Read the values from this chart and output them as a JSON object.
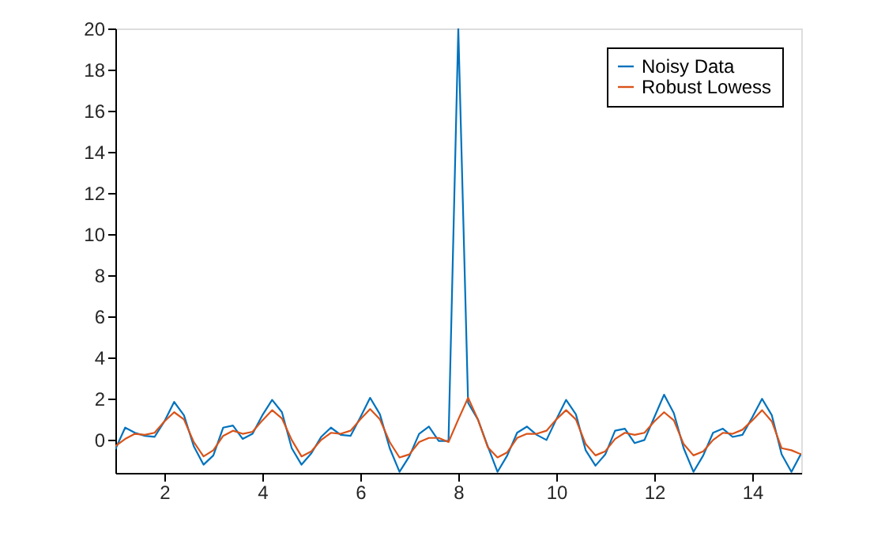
{
  "chart_data": {
    "type": "line",
    "x": [
      1.0,
      1.2,
      1.4,
      1.6,
      1.8,
      2.0,
      2.2,
      2.4,
      2.6,
      2.8,
      3.0,
      3.2,
      3.4,
      3.6,
      3.8,
      4.0,
      4.2,
      4.4,
      4.6,
      4.8,
      5.0,
      5.2,
      5.4,
      5.6,
      5.8,
      6.0,
      6.2,
      6.4,
      6.6,
      6.8,
      7.0,
      7.2,
      7.4,
      7.6,
      7.8,
      8.0,
      8.2,
      8.4,
      8.6,
      8.8,
      9.0,
      9.2,
      9.4,
      9.6,
      9.8,
      10.0,
      10.2,
      10.4,
      10.6,
      10.8,
      11.0,
      11.2,
      11.4,
      11.6,
      11.8,
      12.0,
      12.2,
      12.4,
      12.6,
      12.8,
      13.0,
      13.2,
      13.4,
      13.6,
      13.8,
      14.0,
      14.2,
      14.4,
      14.6,
      14.8,
      15.0
    ],
    "series": [
      {
        "name": "Noisy Data",
        "color": "#0072bd",
        "values": [
          -0.45,
          0.6,
          0.35,
          0.2,
          0.15,
          0.9,
          1.85,
          1.2,
          -0.3,
          -1.2,
          -0.75,
          0.6,
          0.7,
          0.05,
          0.3,
          1.2,
          1.95,
          1.35,
          -0.4,
          -1.2,
          -0.65,
          0.15,
          0.6,
          0.25,
          0.2,
          1.1,
          2.05,
          1.25,
          -0.4,
          -1.55,
          -0.8,
          0.3,
          0.65,
          -0.05,
          -0.05,
          20,
          1.8,
          1.0,
          -0.3,
          -1.55,
          -0.75,
          0.35,
          0.65,
          0.25,
          0.0,
          1.0,
          1.95,
          1.25,
          -0.5,
          -1.25,
          -0.7,
          0.45,
          0.55,
          -0.15,
          0.0,
          1.1,
          2.2,
          1.3,
          -0.4,
          -1.55,
          -0.75,
          0.35,
          0.55,
          0.15,
          0.25,
          1.1,
          2.0,
          1.2,
          -0.7,
          -1.55,
          -0.65
        ]
      },
      {
        "name": "Robust Lowess",
        "color": "#d95319",
        "values": [
          -0.3,
          0.05,
          0.3,
          0.25,
          0.35,
          0.9,
          1.35,
          1.0,
          -0.1,
          -0.8,
          -0.5,
          0.2,
          0.45,
          0.3,
          0.4,
          0.95,
          1.45,
          1.05,
          0.0,
          -0.8,
          -0.55,
          0.0,
          0.35,
          0.3,
          0.45,
          1.0,
          1.5,
          1.0,
          -0.1,
          -0.85,
          -0.7,
          -0.1,
          0.1,
          0.1,
          -0.1,
          1.0,
          2.05,
          1.0,
          -0.35,
          -0.85,
          -0.6,
          0.1,
          0.3,
          0.3,
          0.45,
          1.0,
          1.45,
          1.0,
          -0.2,
          -0.75,
          -0.55,
          0.05,
          0.35,
          0.25,
          0.35,
          0.9,
          1.35,
          0.95,
          -0.2,
          -0.75,
          -0.55,
          0.0,
          0.35,
          0.3,
          0.5,
          0.95,
          1.45,
          0.9,
          -0.4,
          -0.5,
          -0.7
        ]
      }
    ],
    "xlim": [
      1,
      15
    ],
    "xticks": [
      2,
      4,
      6,
      8,
      10,
      12,
      14
    ],
    "ylim": [
      -1.6,
      20
    ],
    "yticks": [
      0,
      2,
      4,
      6,
      8,
      10,
      12,
      14,
      16,
      18,
      20
    ],
    "grid": false,
    "legend": "top right",
    "marker": "none",
    "line_style": "solid"
  }
}
